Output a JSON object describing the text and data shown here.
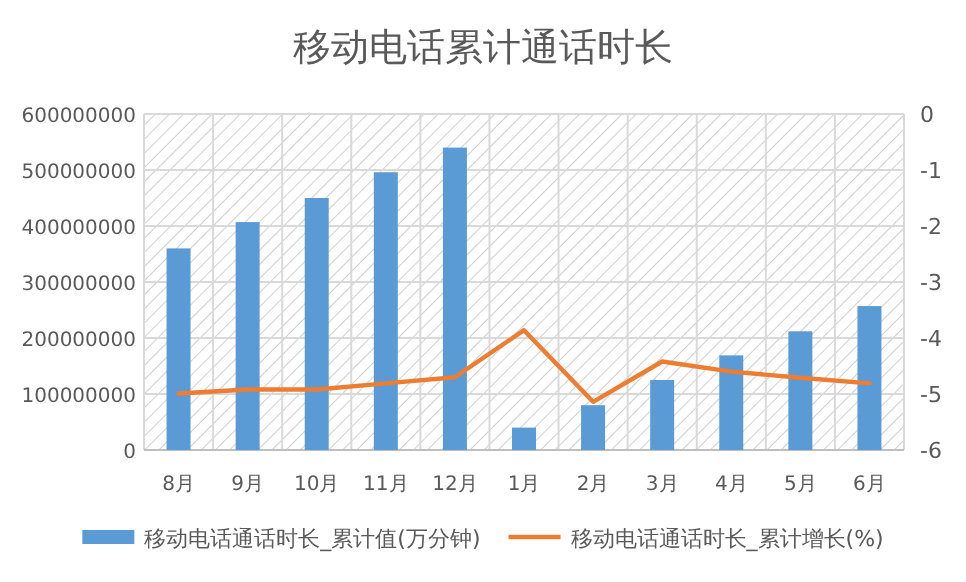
{
  "chart_data": {
    "type": "bar",
    "title": "移动电话累计通话时长",
    "categories": [
      "8月",
      "9月",
      "10月",
      "11月",
      "12月",
      "1月",
      "2月",
      "3月",
      "4月",
      "5月",
      "6月"
    ],
    "series": [
      {
        "name": "移动电话通话时长_累计值(万分钟)",
        "color": "#5b9bd5",
        "values": [
          360000000,
          407000000,
          450000000,
          496000000,
          540000000,
          40000000,
          80000000,
          125000000,
          169000000,
          212000000,
          257000000
        ]
      },
      {
        "name": "移动电话通话时长_累计增长(%)",
        "type": "line",
        "axis": "y2",
        "color": "#ed7d31",
        "values": [
          -4.99,
          -4.92,
          -4.92,
          -4.81,
          -4.7,
          -3.86,
          -5.14,
          -4.42,
          -4.6,
          -4.71,
          -4.81
        ]
      }
    ],
    "ylim": [
      0,
      600000000
    ],
    "yticks": [
      0,
      100000000,
      200000000,
      300000000,
      400000000,
      500000000,
      600000000
    ],
    "y2lim": [
      -6,
      0
    ],
    "y2ticks": [
      -6,
      -5,
      -4,
      -3,
      -2,
      -1,
      0
    ],
    "grid": true,
    "legend": "bottom"
  }
}
